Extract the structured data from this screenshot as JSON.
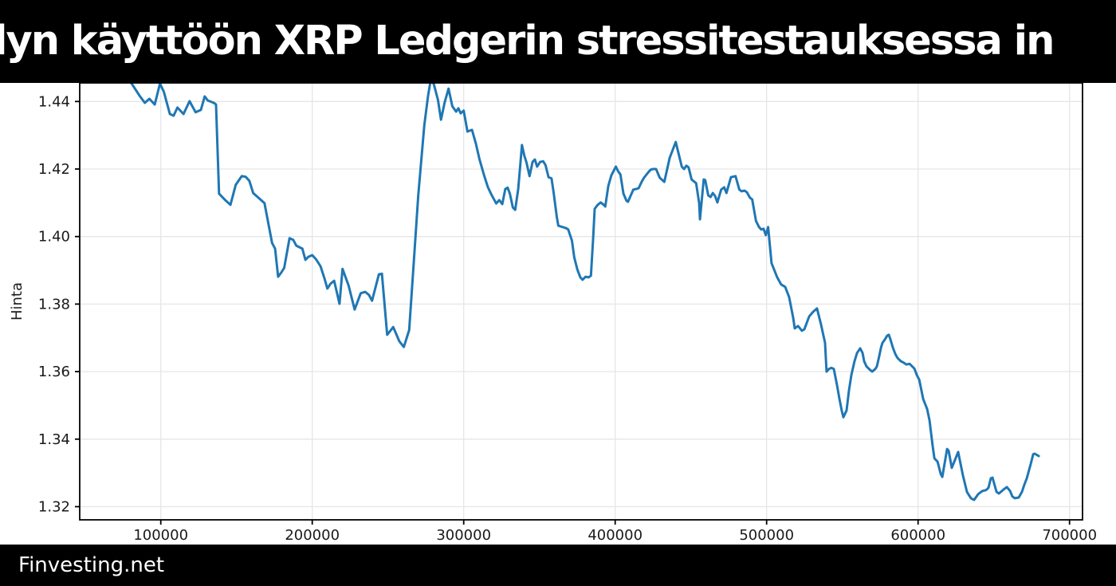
{
  "header": {
    "title": "lyn käyttöön XRP Ledgerin stressitestauksessa in"
  },
  "footer": {
    "brand": "Finvesting.net"
  },
  "colors": {
    "banner_bg": "#000000",
    "banner_text": "#ffffff",
    "line": "#1f77b4",
    "grid": "#e6e6e6",
    "spine": "#000000",
    "tick_text": "#1a1a1a",
    "plot_bg": "#ffffff"
  },
  "chart_data": {
    "type": "line",
    "title": "",
    "xlabel": "",
    "ylabel": "Hinta",
    "grid": true,
    "legend_position": "none",
    "xlim": [
      46500,
      708600
    ],
    "ylim": [
      1.3161,
      1.4455
    ],
    "x_ticks": [
      100000,
      200000,
      300000,
      400000,
      500000,
      600000,
      700000
    ],
    "x_tick_labels": [
      "100000",
      "200000",
      "300000",
      "400000",
      "500000",
      "600000",
      "700000"
    ],
    "y_ticks": [
      1.32,
      1.34,
      1.36,
      1.38,
      1.4,
      1.42,
      1.44
    ],
    "y_tick_labels": [
      "1.32",
      "1.34",
      "1.36",
      "1.38",
      "1.40",
      "1.42",
      "1.44"
    ],
    "series": [
      {
        "name": "Hinta",
        "color": "#1f77b4",
        "points": [
          [
            75000,
            1.45
          ],
          [
            80500,
            1.4455
          ],
          [
            86000,
            1.4417
          ],
          [
            89500,
            1.4396
          ],
          [
            92500,
            1.4408
          ],
          [
            96000,
            1.4391
          ],
          [
            99500,
            1.4453
          ],
          [
            102000,
            1.4429
          ],
          [
            106000,
            1.4363
          ],
          [
            108500,
            1.4358
          ],
          [
            111000,
            1.4382
          ],
          [
            115000,
            1.4363
          ],
          [
            119000,
            1.4401
          ],
          [
            123000,
            1.4368
          ],
          [
            126500,
            1.4375
          ],
          [
            129000,
            1.4415
          ],
          [
            131000,
            1.4403
          ],
          [
            135000,
            1.4396
          ],
          [
            136500,
            1.4391
          ],
          [
            138500,
            1.4127
          ],
          [
            143000,
            1.4106
          ],
          [
            146000,
            1.4094
          ],
          [
            149500,
            1.4153
          ],
          [
            153500,
            1.4179
          ],
          [
            156000,
            1.4177
          ],
          [
            158500,
            1.4165
          ],
          [
            161000,
            1.4129
          ],
          [
            164500,
            1.4115
          ],
          [
            168500,
            1.4099
          ],
          [
            173500,
            1.3981
          ],
          [
            175500,
            1.3964
          ],
          [
            177500,
            1.3881
          ],
          [
            179500,
            1.3893
          ],
          [
            181500,
            1.3907
          ],
          [
            185000,
            1.3995
          ],
          [
            187500,
            1.399
          ],
          [
            189500,
            1.3973
          ],
          [
            193500,
            1.3964
          ],
          [
            195500,
            1.3931
          ],
          [
            197500,
            1.394
          ],
          [
            200000,
            1.3945
          ],
          [
            202500,
            1.3933
          ],
          [
            205500,
            1.3912
          ],
          [
            208000,
            1.3877
          ],
          [
            210000,
            1.3846
          ],
          [
            212000,
            1.386
          ],
          [
            214500,
            1.3869
          ],
          [
            218000,
            1.3801
          ],
          [
            220000,
            1.3904
          ],
          [
            224000,
            1.3855
          ],
          [
            228000,
            1.3784
          ],
          [
            232000,
            1.3832
          ],
          [
            235000,
            1.3836
          ],
          [
            237500,
            1.3827
          ],
          [
            239500,
            1.381
          ],
          [
            244000,
            1.3888
          ],
          [
            246000,
            1.389
          ],
          [
            249500,
            1.3709
          ],
          [
            253500,
            1.3732
          ],
          [
            257500,
            1.369
          ],
          [
            260500,
            1.3673
          ],
          [
            264000,
            1.3723
          ],
          [
            267000,
            1.3921
          ],
          [
            270000,
            1.4122
          ],
          [
            274000,
            1.433
          ],
          [
            276500,
            1.4417
          ],
          [
            278500,
            1.447
          ],
          [
            280500,
            1.4448
          ],
          [
            283000,
            1.4405
          ],
          [
            285000,
            1.4346
          ],
          [
            287500,
            1.4398
          ],
          [
            290000,
            1.4438
          ],
          [
            292500,
            1.4386
          ],
          [
            295000,
            1.437
          ],
          [
            296500,
            1.438
          ],
          [
            298000,
            1.4365
          ],
          [
            300000,
            1.4373
          ],
          [
            302500,
            1.4311
          ],
          [
            305500,
            1.4316
          ],
          [
            308000,
            1.4276
          ],
          [
            310500,
            1.4228
          ],
          [
            313500,
            1.4181
          ],
          [
            316000,
            1.4146
          ],
          [
            318000,
            1.4127
          ],
          [
            320000,
            1.411
          ],
          [
            321500,
            1.4098
          ],
          [
            323500,
            1.4108
          ],
          [
            325500,
            1.4096
          ],
          [
            327500,
            1.4141
          ],
          [
            329000,
            1.4145
          ],
          [
            330500,
            1.4127
          ],
          [
            332500,
            1.4086
          ],
          [
            334000,
            1.4079
          ],
          [
            336000,
            1.4141
          ],
          [
            338500,
            1.4271
          ],
          [
            340000,
            1.424
          ],
          [
            341500,
            1.4219
          ],
          [
            343500,
            1.4179
          ],
          [
            345500,
            1.4221
          ],
          [
            347000,
            1.4228
          ],
          [
            348500,
            1.4207
          ],
          [
            350500,
            1.4221
          ],
          [
            352500,
            1.4223
          ],
          [
            354000,
            1.4212
          ],
          [
            356000,
            1.4176
          ],
          [
            358000,
            1.4172
          ],
          [
            359500,
            1.4127
          ],
          [
            361500,
            1.4058
          ],
          [
            362500,
            1.4032
          ],
          [
            364000,
            1.403
          ],
          [
            367500,
            1.4025
          ],
          [
            369000,
            1.4021
          ],
          [
            371500,
            1.3988
          ],
          [
            373000,
            1.3938
          ],
          [
            375000,
            1.3903
          ],
          [
            377000,
            1.3879
          ],
          [
            378500,
            1.3872
          ],
          [
            380500,
            1.3881
          ],
          [
            382500,
            1.3879
          ],
          [
            384000,
            1.3884
          ],
          [
            385500,
            1.3995
          ],
          [
            386500,
            1.4082
          ],
          [
            388500,
            1.4094
          ],
          [
            390500,
            1.4101
          ],
          [
            392500,
            1.4094
          ],
          [
            393500,
            1.4089
          ],
          [
            395500,
            1.415
          ],
          [
            397500,
            1.4181
          ],
          [
            400500,
            1.4207
          ],
          [
            402000,
            1.4193
          ],
          [
            403500,
            1.4184
          ],
          [
            405500,
            1.4127
          ],
          [
            407500,
            1.4106
          ],
          [
            408500,
            1.4103
          ],
          [
            411000,
            1.4129
          ],
          [
            412000,
            1.4139
          ],
          [
            414000,
            1.4141
          ],
          [
            415500,
            1.4143
          ],
          [
            417500,
            1.4162
          ],
          [
            419000,
            1.4174
          ],
          [
            422000,
            1.4191
          ],
          [
            423500,
            1.4198
          ],
          [
            425000,
            1.42
          ],
          [
            427000,
            1.42
          ],
          [
            429500,
            1.4174
          ],
          [
            432500,
            1.4162
          ],
          [
            436000,
            1.4233
          ],
          [
            440000,
            1.428
          ],
          [
            444000,
            1.4207
          ],
          [
            445500,
            1.42
          ],
          [
            447000,
            1.421
          ],
          [
            448500,
            1.4205
          ],
          [
            450500,
            1.4169
          ],
          [
            453500,
            1.4158
          ],
          [
            455500,
            1.4099
          ],
          [
            456000,
            1.4051
          ],
          [
            458500,
            1.4169
          ],
          [
            459500,
            1.4167
          ],
          [
            461500,
            1.4122
          ],
          [
            463000,
            1.4117
          ],
          [
            464500,
            1.4129
          ],
          [
            466000,
            1.412
          ],
          [
            467500,
            1.4101
          ],
          [
            470000,
            1.4139
          ],
          [
            472000,
            1.4146
          ],
          [
            473500,
            1.4129
          ],
          [
            476500,
            1.4176
          ],
          [
            479500,
            1.4179
          ],
          [
            482000,
            1.4139
          ],
          [
            483500,
            1.4134
          ],
          [
            485500,
            1.4136
          ],
          [
            487000,
            1.4131
          ],
          [
            489000,
            1.4115
          ],
          [
            490500,
            1.411
          ],
          [
            493000,
            1.4046
          ],
          [
            495000,
            1.4028
          ],
          [
            496500,
            1.4021
          ],
          [
            498000,
            1.4023
          ],
          [
            499500,
            1.4004
          ],
          [
            501000,
            1.4028
          ],
          [
            503300,
            1.3921
          ],
          [
            507000,
            1.3879
          ],
          [
            509600,
            1.3858
          ],
          [
            512300,
            1.3851
          ],
          [
            514900,
            1.382
          ],
          [
            517500,
            1.3761
          ],
          [
            518600,
            1.3728
          ],
          [
            520700,
            1.3735
          ],
          [
            521700,
            1.373
          ],
          [
            523300,
            1.3721
          ],
          [
            524900,
            1.3725
          ],
          [
            528100,
            1.3763
          ],
          [
            530700,
            1.3777
          ],
          [
            533300,
            1.3787
          ],
          [
            535900,
            1.374
          ],
          [
            538600,
            1.3685
          ],
          [
            539600,
            1.36
          ],
          [
            541200,
            1.3608
          ],
          [
            542800,
            1.3611
          ],
          [
            544400,
            1.3608
          ],
          [
            546500,
            1.356
          ],
          [
            548100,
            1.352
          ],
          [
            549600,
            1.3485
          ],
          [
            550700,
            1.3465
          ],
          [
            552800,
            1.3485
          ],
          [
            554400,
            1.3544
          ],
          [
            556000,
            1.3591
          ],
          [
            558100,
            1.3631
          ],
          [
            559700,
            1.3655
          ],
          [
            561800,
            1.3669
          ],
          [
            563400,
            1.3655
          ],
          [
            564400,
            1.3631
          ],
          [
            566000,
            1.3615
          ],
          [
            567600,
            1.3608
          ],
          [
            569700,
            1.36
          ],
          [
            571800,
            1.3608
          ],
          [
            572800,
            1.3615
          ],
          [
            574400,
            1.3646
          ],
          [
            575500,
            1.367
          ],
          [
            576500,
            1.3685
          ],
          [
            578100,
            1.3695
          ],
          [
            579700,
            1.3707
          ],
          [
            580700,
            1.3709
          ],
          [
            581800,
            1.3695
          ],
          [
            583400,
            1.3671
          ],
          [
            585000,
            1.3652
          ],
          [
            586500,
            1.364
          ],
          [
            588600,
            1.3631
          ],
          [
            590700,
            1.3626
          ],
          [
            592300,
            1.3621
          ],
          [
            594400,
            1.3623
          ],
          [
            596000,
            1.3616
          ],
          [
            597600,
            1.3609
          ],
          [
            599200,
            1.359
          ],
          [
            600800,
            1.3576
          ],
          [
            603400,
            1.3519
          ],
          [
            606000,
            1.3489
          ],
          [
            607600,
            1.3455
          ],
          [
            608600,
            1.3418
          ],
          [
            609700,
            1.3378
          ],
          [
            610800,
            1.3343
          ],
          [
            612900,
            1.3333
          ],
          [
            615000,
            1.3296
          ],
          [
            616000,
            1.3288
          ],
          [
            619200,
            1.3371
          ],
          [
            620200,
            1.3366
          ],
          [
            622300,
            1.3315
          ],
          [
            626500,
            1.3362
          ],
          [
            629700,
            1.3291
          ],
          [
            632300,
            1.3244
          ],
          [
            634900,
            1.3225
          ],
          [
            637000,
            1.322
          ],
          [
            639700,
            1.3237
          ],
          [
            642300,
            1.3246
          ],
          [
            644900,
            1.3249
          ],
          [
            646500,
            1.3256
          ],
          [
            648100,
            1.3284
          ],
          [
            649200,
            1.3286
          ],
          [
            651800,
            1.3244
          ],
          [
            653400,
            1.3239
          ],
          [
            656000,
            1.3249
          ],
          [
            658600,
            1.3258
          ],
          [
            660700,
            1.3247
          ],
          [
            662300,
            1.323
          ],
          [
            663900,
            1.3225
          ],
          [
            666500,
            1.3227
          ],
          [
            668600,
            1.3244
          ],
          [
            670200,
            1.3265
          ],
          [
            671800,
            1.3284
          ],
          [
            674400,
            1.3326
          ],
          [
            676000,
            1.3355
          ],
          [
            677000,
            1.3357
          ],
          [
            679700,
            1.335
          ]
        ]
      }
    ]
  }
}
